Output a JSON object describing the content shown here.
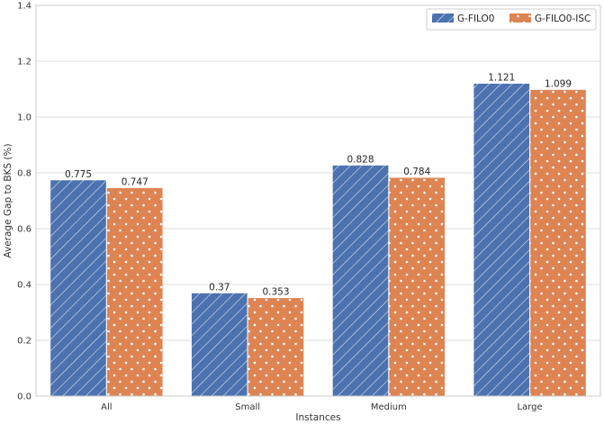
{
  "chart_data": {
    "type": "bar",
    "title": "",
    "xlabel": "Instances",
    "ylabel": "Average Gap to BKS (%)",
    "categories": [
      "All",
      "Small",
      "Medium",
      "Large"
    ],
    "series": [
      {
        "name": "G-FILO0",
        "values": [
          0.775,
          0.37,
          0.828,
          1.121
        ],
        "labels": [
          "0.775",
          "0.37",
          "0.828",
          "1.121"
        ],
        "color": "#4c72b0",
        "pattern": "diagonal-hatch"
      },
      {
        "name": "G-FILO0-ISC",
        "values": [
          0.747,
          0.353,
          0.784,
          1.099
        ],
        "labels": [
          "0.747",
          "0.353",
          "0.784",
          "1.099"
        ],
        "color": "#dd8452",
        "pattern": "dots"
      }
    ],
    "ylim": [
      0,
      1.4
    ],
    "yticks": [
      "0.0",
      "0.2",
      "0.4",
      "0.6",
      "0.8",
      "1.0",
      "1.2",
      "1.4"
    ],
    "grid": true,
    "legend_position": "top-right"
  }
}
